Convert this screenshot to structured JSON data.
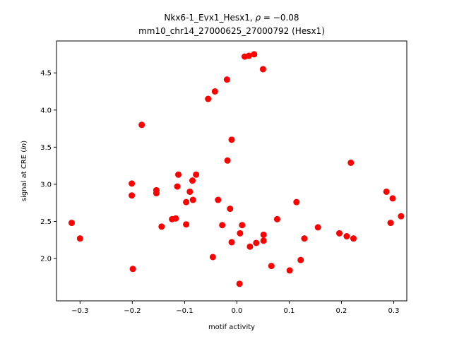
{
  "chart_data": {
    "type": "scatter",
    "title_line1_prefix": "Nkx6-1_Evx1_Hesx1, ",
    "title_line1_rho_symbol": "ρ",
    "title_line1_rho_value": " = −0.08",
    "title_line2": "mm10_chr14_27000625_27000792 (Hesx1)",
    "xlabel": "motif activity",
    "ylabel_prefix": "signal at CRE (",
    "ylabel_italic": "ln",
    "ylabel_suffix": ")",
    "xlim": [
      -0.345,
      0.325
    ],
    "ylim": [
      1.43,
      4.93
    ],
    "xticks": [
      -0.3,
      -0.2,
      -0.1,
      0.0,
      0.1,
      0.2,
      0.3
    ],
    "xtick_labels": [
      "−0.3",
      "−0.2",
      "−0.1",
      "0.0",
      "0.1",
      "0.2",
      "0.3"
    ],
    "yticks": [
      2.0,
      2.5,
      3.0,
      3.5,
      4.0,
      4.5
    ],
    "ytick_labels": [
      "2.0",
      "2.5",
      "3.0",
      "3.5",
      "4.0",
      "4.5"
    ],
    "marker_color": "#ff0000",
    "points": [
      {
        "x": -0.316,
        "y": 2.48
      },
      {
        "x": -0.3,
        "y": 2.27
      },
      {
        "x": -0.201,
        "y": 3.01
      },
      {
        "x": -0.201,
        "y": 2.85
      },
      {
        "x": -0.199,
        "y": 1.86
      },
      {
        "x": -0.182,
        "y": 3.8
      },
      {
        "x": -0.154,
        "y": 2.92
      },
      {
        "x": -0.154,
        "y": 2.88
      },
      {
        "x": -0.144,
        "y": 2.43
      },
      {
        "x": -0.124,
        "y": 2.53
      },
      {
        "x": -0.117,
        "y": 2.54
      },
      {
        "x": -0.114,
        "y": 2.97
      },
      {
        "x": -0.112,
        "y": 3.13
      },
      {
        "x": -0.097,
        "y": 2.76
      },
      {
        "x": -0.097,
        "y": 2.46
      },
      {
        "x": -0.09,
        "y": 2.9
      },
      {
        "x": -0.085,
        "y": 3.05
      },
      {
        "x": -0.084,
        "y": 2.79
      },
      {
        "x": -0.078,
        "y": 3.13
      },
      {
        "x": -0.055,
        "y": 4.15
      },
      {
        "x": -0.046,
        "y": 2.02
      },
      {
        "x": -0.042,
        "y": 4.25
      },
      {
        "x": -0.036,
        "y": 2.79
      },
      {
        "x": -0.028,
        "y": 2.45
      },
      {
        "x": -0.019,
        "y": 4.41
      },
      {
        "x": -0.018,
        "y": 3.32
      },
      {
        "x": -0.013,
        "y": 2.67
      },
      {
        "x": -0.01,
        "y": 3.6
      },
      {
        "x": -0.01,
        "y": 2.22
      },
      {
        "x": 0.005,
        "y": 1.66
      },
      {
        "x": 0.006,
        "y": 2.34
      },
      {
        "x": 0.01,
        "y": 2.45
      },
      {
        "x": 0.015,
        "y": 4.72
      },
      {
        "x": 0.023,
        "y": 4.73
      },
      {
        "x": 0.025,
        "y": 2.16
      },
      {
        "x": 0.033,
        "y": 4.75
      },
      {
        "x": 0.037,
        "y": 2.21
      },
      {
        "x": 0.05,
        "y": 4.55
      },
      {
        "x": 0.051,
        "y": 2.32
      },
      {
        "x": 0.051,
        "y": 2.24
      },
      {
        "x": 0.066,
        "y": 1.9
      },
      {
        "x": 0.077,
        "y": 2.53
      },
      {
        "x": 0.101,
        "y": 1.84
      },
      {
        "x": 0.114,
        "y": 2.76
      },
      {
        "x": 0.122,
        "y": 1.98
      },
      {
        "x": 0.129,
        "y": 2.27
      },
      {
        "x": 0.155,
        "y": 2.42
      },
      {
        "x": 0.196,
        "y": 2.34
      },
      {
        "x": 0.21,
        "y": 2.3
      },
      {
        "x": 0.218,
        "y": 3.29
      },
      {
        "x": 0.223,
        "y": 2.27
      },
      {
        "x": 0.286,
        "y": 2.9
      },
      {
        "x": 0.294,
        "y": 2.48
      },
      {
        "x": 0.298,
        "y": 2.81
      },
      {
        "x": 0.314,
        "y": 2.57
      }
    ]
  }
}
